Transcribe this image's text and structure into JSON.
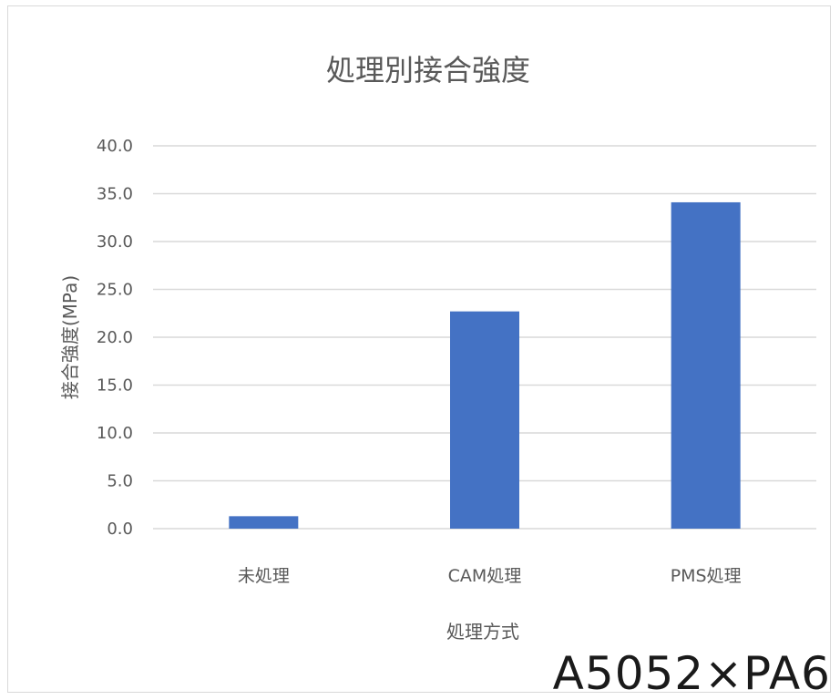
{
  "chart_data": {
    "type": "bar",
    "title": "処理別接合強度",
    "xlabel": "処理方式",
    "ylabel": "接合強度(MPa)",
    "categories": [
      "未処理",
      "CAM処理",
      "PMS処理"
    ],
    "values": [
      1.3,
      22.7,
      34.1
    ],
    "ylim": [
      0,
      40
    ],
    "yticks": [
      "0.0",
      "5.0",
      "10.0",
      "15.0",
      "20.0",
      "25.0",
      "30.0",
      "35.0",
      "40.0"
    ],
    "grid": true,
    "bar_color": "#4472C4",
    "gridline_color": "#d9d9d9"
  },
  "caption": "A5052×PA6"
}
